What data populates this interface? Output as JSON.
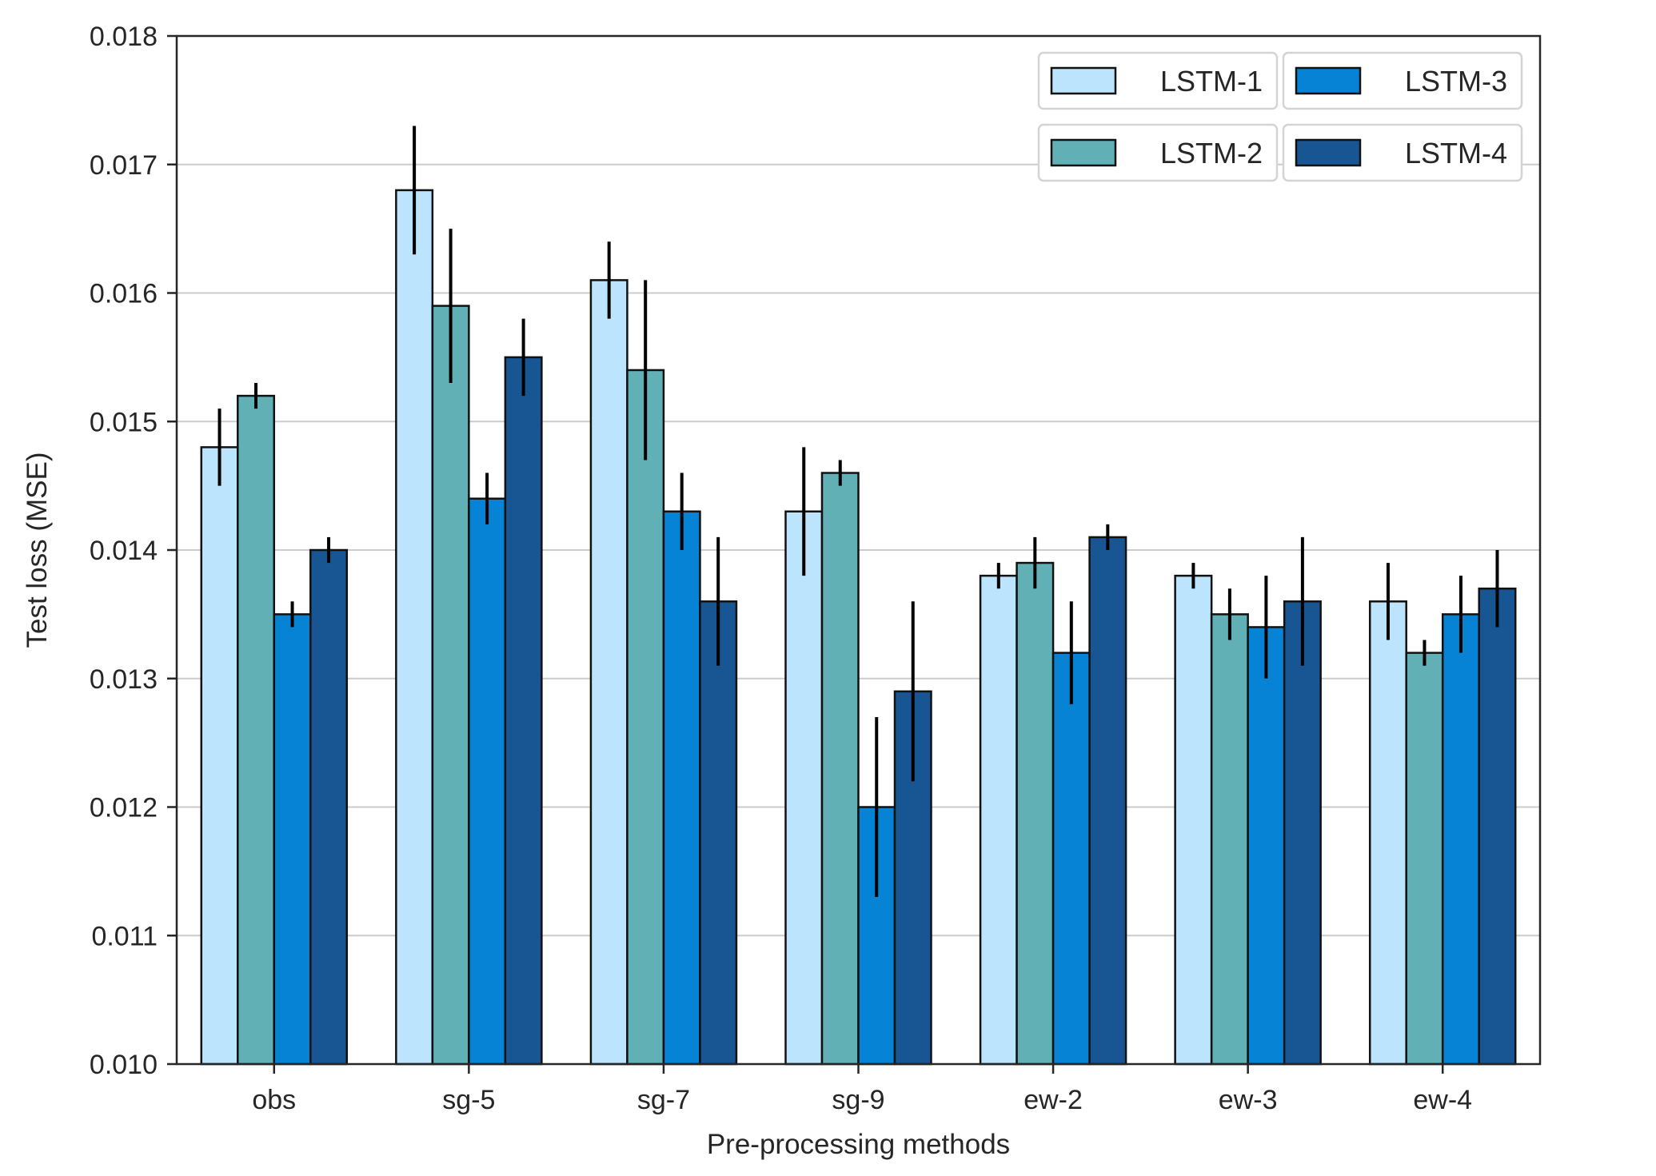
{
  "chart_data": {
    "type": "bar",
    "title": "",
    "xlabel": "Pre-processing methods",
    "ylabel": "Test loss (MSE)",
    "ylim": [
      0.01,
      0.018
    ],
    "yticks": [
      0.01,
      0.011,
      0.012,
      0.013,
      0.014,
      0.015,
      0.016,
      0.017,
      0.018
    ],
    "ytick_labels": [
      "0.010",
      "0.011",
      "0.012",
      "0.013",
      "0.014",
      "0.015",
      "0.016",
      "0.017",
      "0.018"
    ],
    "grid": "horizontal",
    "legend_position": "top-right",
    "categories": [
      "obs",
      "sg-5",
      "sg-7",
      "sg-9",
      "ew-2",
      "ew-3",
      "ew-4"
    ],
    "series": [
      {
        "name": "LSTM-1",
        "color": "#bce4fc",
        "values": [
          0.0148,
          0.0168,
          0.0161,
          0.0143,
          0.0138,
          0.0138,
          0.0136
        ],
        "errors": [
          0.0003,
          0.0005,
          0.0003,
          0.0005,
          0.0001,
          0.0001,
          0.0003
        ]
      },
      {
        "name": "LSTM-2",
        "color": "#61b0b6",
        "values": [
          0.0152,
          0.0159,
          0.0154,
          0.0146,
          0.0139,
          0.0135,
          0.0132
        ],
        "errors": [
          0.0001,
          0.0006,
          0.0007,
          0.0001,
          0.0002,
          0.0002,
          0.0001
        ]
      },
      {
        "name": "LSTM-3",
        "color": "#0683d4",
        "values": [
          0.0135,
          0.0144,
          0.0143,
          0.012,
          0.0132,
          0.0134,
          0.0135
        ],
        "errors": [
          0.0001,
          0.0002,
          0.0003,
          0.0007,
          0.0004,
          0.0004,
          0.0003
        ]
      },
      {
        "name": "LSTM-4",
        "color": "#175593",
        "values": [
          0.014,
          0.0155,
          0.0136,
          0.0129,
          0.0141,
          0.0136,
          0.0137
        ],
        "errors": [
          0.0001,
          0.0003,
          0.0005,
          0.0007,
          0.0001,
          0.0005,
          0.0003
        ]
      }
    ]
  }
}
